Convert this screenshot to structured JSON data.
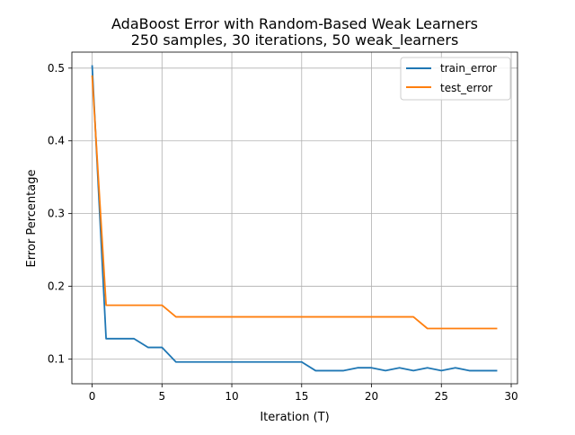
{
  "chart_data": {
    "type": "line",
    "title": "AdaBoost Error with Random-Based Weak Learners",
    "subtitle": "250 samples, 30 iterations, 50 weak_learners",
    "xlabel": "Iteration (T)",
    "ylabel": "Error Percentage",
    "xlim": [
      -1.45,
      30.45
    ],
    "ylim": [
      0.066,
      0.522
    ],
    "xticks": [
      0,
      5,
      10,
      15,
      20,
      25,
      30
    ],
    "yticks": [
      0.1,
      0.2,
      0.3,
      0.4,
      0.5
    ],
    "xtick_labels": [
      "0",
      "5",
      "10",
      "15",
      "20",
      "25",
      "30"
    ],
    "ytick_labels": [
      "0.1",
      "0.2",
      "0.3",
      "0.4",
      "0.5"
    ],
    "grid": true,
    "legend_position": "top-right",
    "x": [
      0,
      1,
      2,
      3,
      4,
      5,
      6,
      7,
      8,
      9,
      10,
      11,
      12,
      13,
      14,
      15,
      16,
      17,
      18,
      19,
      20,
      21,
      22,
      23,
      24,
      25,
      26,
      27,
      28,
      29
    ],
    "series": [
      {
        "name": "train_error",
        "color": "#1f77b4",
        "values": [
          0.504,
          0.128,
          0.128,
          0.128,
          0.116,
          0.116,
          0.096,
          0.096,
          0.096,
          0.096,
          0.096,
          0.096,
          0.096,
          0.096,
          0.096,
          0.096,
          0.084,
          0.084,
          0.084,
          0.088,
          0.088,
          0.084,
          0.088,
          0.084,
          0.088,
          0.084,
          0.088,
          0.084,
          0.084,
          0.084
        ]
      },
      {
        "name": "test_error",
        "color": "#ff7f0e",
        "values": [
          0.49,
          0.174,
          0.174,
          0.174,
          0.174,
          0.174,
          0.158,
          0.158,
          0.158,
          0.158,
          0.158,
          0.158,
          0.158,
          0.158,
          0.158,
          0.158,
          0.158,
          0.158,
          0.158,
          0.158,
          0.158,
          0.158,
          0.158,
          0.158,
          0.142,
          0.142,
          0.142,
          0.142,
          0.142,
          0.142
        ]
      }
    ]
  },
  "colors": {
    "grid": "#b0b0b0",
    "axes": "#000000",
    "legend_border": "#cccccc",
    "background": "#ffffff"
  }
}
